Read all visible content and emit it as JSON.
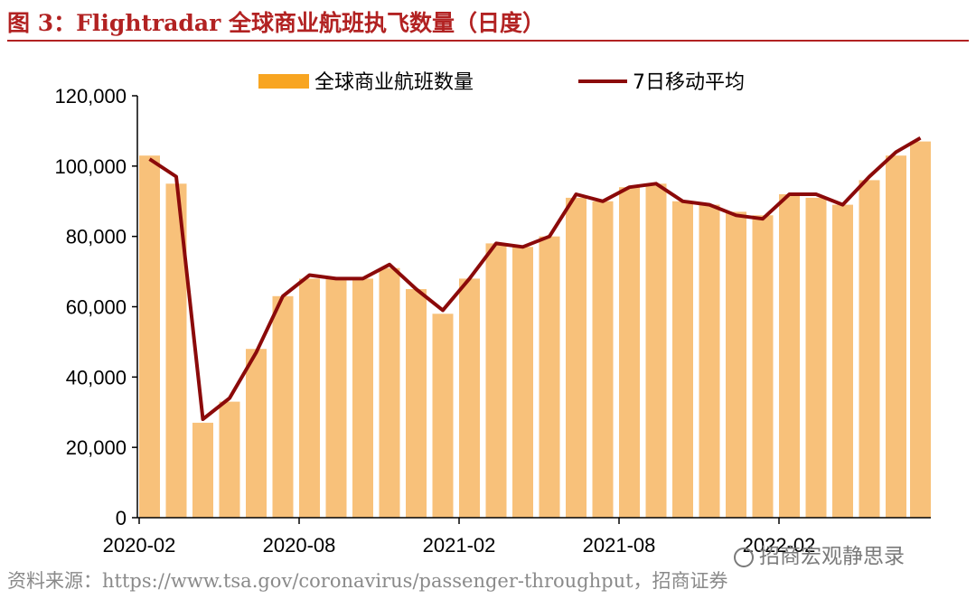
{
  "figure": {
    "title": "图 3：Flightradar 全球商业航班执飞数量（日度）",
    "source": "资料来源：https://www.tsa.gov/coronavirus/passenger-throughput，招商证券",
    "watermark": "招商宏观静思录"
  },
  "colors": {
    "bar": "#f8c17a",
    "line": "#8b0a0a",
    "accent": "#b22222"
  },
  "chart_data": {
    "type": "bar",
    "title": "",
    "xlabel": "",
    "ylabel": "",
    "ylim": [
      0,
      120000
    ],
    "yticks": [
      "0",
      "20,000",
      "40,000",
      "60,000",
      "80,000",
      "100,000",
      "120,000"
    ],
    "xticks": [
      "2020-02",
      "2020-08",
      "2021-02",
      "2021-08",
      "2022-02"
    ],
    "legend": {
      "position": "top-center"
    },
    "grid": false,
    "x_unit": "month",
    "x": [
      "2020-02",
      "2020-03",
      "2020-04",
      "2020-05",
      "2020-06",
      "2020-07",
      "2020-08",
      "2020-09",
      "2020-10",
      "2020-11",
      "2020-12",
      "2021-01",
      "2021-02",
      "2021-03",
      "2021-04",
      "2021-05",
      "2021-06",
      "2021-07",
      "2021-08",
      "2021-09",
      "2021-10",
      "2021-11",
      "2021-12",
      "2022-01",
      "2022-02",
      "2022-03",
      "2022-04",
      "2022-05",
      "2022-06",
      "2022-07"
    ],
    "series": [
      {
        "name": "全球商业航班数量",
        "kind": "bar",
        "color": "#f8c17a",
        "values": [
          103000,
          95000,
          27000,
          33000,
          48000,
          63000,
          68000,
          68000,
          68000,
          71000,
          65000,
          58000,
          68000,
          78000,
          77000,
          80000,
          91000,
          90000,
          94000,
          95000,
          90000,
          89000,
          87000,
          86000,
          92000,
          91000,
          89000,
          96000,
          103000,
          107000
        ]
      },
      {
        "name": "7日移动平均",
        "kind": "line",
        "color": "#8b0a0a",
        "values": [
          102000,
          97000,
          28000,
          34000,
          47000,
          63000,
          69000,
          68000,
          68000,
          72000,
          65000,
          59000,
          68000,
          78000,
          77000,
          80000,
          92000,
          90000,
          94000,
          95000,
          90000,
          89000,
          86000,
          85000,
          92000,
          92000,
          89000,
          97000,
          104000,
          108000
        ]
      }
    ]
  }
}
